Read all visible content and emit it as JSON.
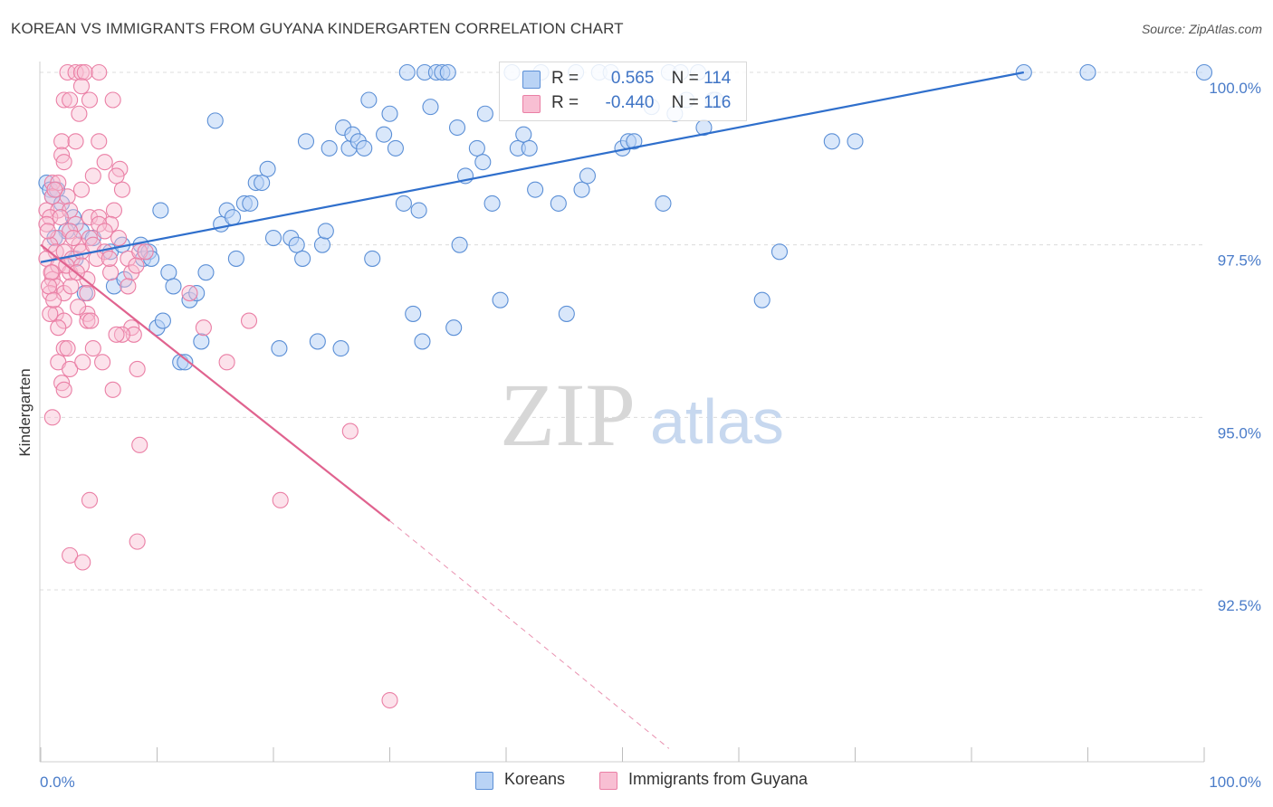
{
  "title": "KOREAN VS IMMIGRANTS FROM GUYANA KINDERGARTEN CORRELATION CHART",
  "source": "Source: ZipAtlas.com",
  "watermark": {
    "zip": "ZIP",
    "atlas": "atlas"
  },
  "colors": {
    "blue_fill": "#b9d3f5",
    "blue_stroke": "#5b8fd6",
    "blue_line": "#2f6fcc",
    "pink_fill": "#f8bfd3",
    "pink_stroke": "#ea7fa5",
    "pink_line": "#e0638f",
    "grid": "#dcdcdc",
    "tick_text": "#4a7cc9"
  },
  "legend": {
    "koreans": {
      "r_label": "R =",
      "r_value": "0.565",
      "n_label": "N =",
      "n_value": "114"
    },
    "guyana": {
      "r_label": "R =",
      "r_value": "-0.440",
      "n_label": "N =",
      "n_value": "116"
    }
  },
  "chart_data": {
    "type": "scatter",
    "title": "KOREAN VS IMMIGRANTS FROM GUYANA KINDERGARTEN CORRELATION CHART",
    "xlabel": "",
    "ylabel": "Kindergarten",
    "xlim": [
      0,
      100
    ],
    "ylim": [
      90.2,
      100.4
    ],
    "x_tick_labels": [
      "0.0%",
      "100.0%"
    ],
    "y_ticks": [
      100.0,
      97.5,
      95.0,
      92.5
    ],
    "y_tick_labels": [
      "100.0%",
      "97.5%",
      "95.0%",
      "92.5%"
    ],
    "grid": "horizontal dashed",
    "legend_position": "top-center and bottom",
    "series": [
      {
        "name": "Koreans",
        "r": 0.565,
        "n": 114,
        "trend": {
          "x0": 0,
          "y0": 97.25,
          "x1": 84.5,
          "y1": 100.0
        },
        "points": [
          [
            0.5,
            98.4
          ],
          [
            0.8,
            98.3
          ],
          [
            1.0,
            98.2
          ],
          [
            1.4,
            98.3
          ],
          [
            1.8,
            98.1
          ],
          [
            2.2,
            97.7
          ],
          [
            2.8,
            97.9
          ],
          [
            3.5,
            97.7
          ],
          [
            1.2,
            97.6
          ],
          [
            3.8,
            96.8
          ],
          [
            4.5,
            97.6
          ],
          [
            6.0,
            97.4
          ],
          [
            6.3,
            96.9
          ],
          [
            7.0,
            97.5
          ],
          [
            7.2,
            97.0
          ],
          [
            8.6,
            97.5
          ],
          [
            8.8,
            97.3
          ],
          [
            9.3,
            97.4
          ],
          [
            10.0,
            96.3
          ],
          [
            10.3,
            98.0
          ],
          [
            10.5,
            96.4
          ],
          [
            11.0,
            97.1
          ],
          [
            11.4,
            96.9
          ],
          [
            12.0,
            95.8
          ],
          [
            12.4,
            95.8
          ],
          [
            12.8,
            96.7
          ],
          [
            13.4,
            96.8
          ],
          [
            13.8,
            96.1
          ],
          [
            14.2,
            97.1
          ],
          [
            15.0,
            99.3
          ],
          [
            15.5,
            97.8
          ],
          [
            16.0,
            98.0
          ],
          [
            16.5,
            97.9
          ],
          [
            16.8,
            97.3
          ],
          [
            17.5,
            98.1
          ],
          [
            18.0,
            98.1
          ],
          [
            18.5,
            98.4
          ],
          [
            19.0,
            98.4
          ],
          [
            19.5,
            98.6
          ],
          [
            20.0,
            97.6
          ],
          [
            20.5,
            96.0
          ],
          [
            21.5,
            97.6
          ],
          [
            22.0,
            97.5
          ],
          [
            22.5,
            97.3
          ],
          [
            22.8,
            99.0
          ],
          [
            23.8,
            96.1
          ],
          [
            24.2,
            97.5
          ],
          [
            24.5,
            97.7
          ],
          [
            24.8,
            98.9
          ],
          [
            25.8,
            96.0
          ],
          [
            26.0,
            99.2
          ],
          [
            26.5,
            98.9
          ],
          [
            26.8,
            99.1
          ],
          [
            27.3,
            99.0
          ],
          [
            27.8,
            98.9
          ],
          [
            28.2,
            99.6
          ],
          [
            28.5,
            97.3
          ],
          [
            29.5,
            99.1
          ],
          [
            30.0,
            99.4
          ],
          [
            30.5,
            98.9
          ],
          [
            31.2,
            98.1
          ],
          [
            31.5,
            100.0
          ],
          [
            32.0,
            96.5
          ],
          [
            32.5,
            98.0
          ],
          [
            32.8,
            96.1
          ],
          [
            33.0,
            100.0
          ],
          [
            33.5,
            99.5
          ],
          [
            34.0,
            100.0
          ],
          [
            34.5,
            100.0
          ],
          [
            35.0,
            100.0
          ],
          [
            35.5,
            96.3
          ],
          [
            35.8,
            99.2
          ],
          [
            36.0,
            97.5
          ],
          [
            36.5,
            98.5
          ],
          [
            37.5,
            98.9
          ],
          [
            38.0,
            98.7
          ],
          [
            38.2,
            99.4
          ],
          [
            38.8,
            98.1
          ],
          [
            39.5,
            96.7
          ],
          [
            40.5,
            100.0
          ],
          [
            41.0,
            98.9
          ],
          [
            41.5,
            99.1
          ],
          [
            42.0,
            98.9
          ],
          [
            42.5,
            98.3
          ],
          [
            43.0,
            100.0
          ],
          [
            44.5,
            98.1
          ],
          [
            45.2,
            96.5
          ],
          [
            46.0,
            100.0
          ],
          [
            46.5,
            98.3
          ],
          [
            47.0,
            98.5
          ],
          [
            48.0,
            100.0
          ],
          [
            49.0,
            100.0
          ],
          [
            50.0,
            98.9
          ],
          [
            50.5,
            99.0
          ],
          [
            51.0,
            99.0
          ],
          [
            52.5,
            99.5
          ],
          [
            53.5,
            98.1
          ],
          [
            54.0,
            100.0
          ],
          [
            54.5,
            99.4
          ],
          [
            55.0,
            100.0
          ],
          [
            55.5,
            99.6
          ],
          [
            56.5,
            100.0
          ],
          [
            57.0,
            99.2
          ],
          [
            57.8,
            99.6
          ],
          [
            58.0,
            99.6
          ],
          [
            62.0,
            96.7
          ],
          [
            63.5,
            97.4
          ],
          [
            68.0,
            99.0
          ],
          [
            70.0,
            99.0
          ],
          [
            84.5,
            100.0
          ],
          [
            90.0,
            100.0
          ],
          [
            100.0,
            100.0
          ],
          [
            3.0,
            97.3
          ],
          [
            9.5,
            97.3
          ]
        ]
      },
      {
        "name": "Immigrants from Guyana",
        "r": -0.44,
        "n": 116,
        "trend": {
          "x0": 0,
          "y0": 97.5,
          "x1": 30.0,
          "y1": 93.5,
          "dash_to": {
            "x": 54.0,
            "y": 90.2
          }
        },
        "points": [
          [
            2.3,
            100.0
          ],
          [
            3.0,
            100.0
          ],
          [
            3.5,
            100.0
          ],
          [
            3.8,
            100.0
          ],
          [
            5.0,
            100.0
          ],
          [
            3.5,
            99.8
          ],
          [
            2.0,
            99.6
          ],
          [
            2.5,
            99.6
          ],
          [
            4.2,
            99.6
          ],
          [
            6.2,
            99.6
          ],
          [
            3.3,
            99.4
          ],
          [
            1.8,
            99.0
          ],
          [
            3.0,
            99.0
          ],
          [
            5.0,
            99.0
          ],
          [
            1.8,
            98.8
          ],
          [
            2.0,
            98.7
          ],
          [
            5.5,
            98.7
          ],
          [
            4.5,
            98.5
          ],
          [
            6.8,
            98.6
          ],
          [
            6.5,
            98.5
          ],
          [
            1.0,
            98.4
          ],
          [
            1.5,
            98.4
          ],
          [
            2.3,
            98.2
          ],
          [
            3.5,
            98.3
          ],
          [
            7.0,
            98.3
          ],
          [
            1.0,
            98.2
          ],
          [
            0.5,
            98.0
          ],
          [
            1.5,
            98.0
          ],
          [
            2.5,
            98.0
          ],
          [
            6.3,
            98.0
          ],
          [
            0.8,
            97.9
          ],
          [
            3.0,
            97.8
          ],
          [
            4.2,
            97.9
          ],
          [
            5.0,
            97.9
          ],
          [
            6.0,
            97.8
          ],
          [
            0.5,
            97.8
          ],
          [
            1.5,
            97.6
          ],
          [
            2.5,
            97.7
          ],
          [
            3.3,
            97.5
          ],
          [
            4.2,
            97.6
          ],
          [
            5.0,
            97.8
          ],
          [
            5.5,
            97.7
          ],
          [
            0.8,
            97.5
          ],
          [
            1.3,
            97.4
          ],
          [
            2.0,
            97.4
          ],
          [
            2.7,
            97.3
          ],
          [
            3.5,
            97.4
          ],
          [
            4.5,
            97.5
          ],
          [
            5.5,
            97.4
          ],
          [
            7.5,
            97.3
          ],
          [
            8.5,
            97.4
          ],
          [
            0.5,
            97.3
          ],
          [
            1.0,
            97.1
          ],
          [
            1.5,
            97.2
          ],
          [
            2.5,
            97.1
          ],
          [
            3.5,
            97.2
          ],
          [
            4.0,
            97.0
          ],
          [
            6.0,
            97.1
          ],
          [
            7.8,
            97.1
          ],
          [
            8.2,
            97.2
          ],
          [
            1.0,
            97.0
          ],
          [
            1.3,
            96.9
          ],
          [
            0.8,
            96.8
          ],
          [
            2.0,
            96.8
          ],
          [
            4.0,
            96.8
          ],
          [
            1.3,
            96.5
          ],
          [
            4.0,
            96.5
          ],
          [
            0.8,
            96.5
          ],
          [
            2.0,
            96.4
          ],
          [
            1.5,
            96.3
          ],
          [
            4.0,
            96.4
          ],
          [
            4.3,
            96.4
          ],
          [
            7.8,
            96.3
          ],
          [
            8.0,
            96.2
          ],
          [
            7.0,
            96.2
          ],
          [
            6.5,
            96.2
          ],
          [
            14.0,
            96.3
          ],
          [
            17.9,
            96.4
          ],
          [
            2.0,
            96.0
          ],
          [
            2.3,
            96.0
          ],
          [
            4.5,
            96.0
          ],
          [
            1.5,
            95.8
          ],
          [
            2.5,
            95.7
          ],
          [
            3.6,
            95.8
          ],
          [
            5.3,
            95.8
          ],
          [
            8.3,
            95.7
          ],
          [
            1.8,
            95.5
          ],
          [
            2.0,
            95.4
          ],
          [
            6.2,
            95.4
          ],
          [
            1.0,
            95.0
          ],
          [
            8.5,
            94.6
          ],
          [
            26.6,
            94.8
          ],
          [
            4.2,
            93.8
          ],
          [
            20.6,
            93.8
          ],
          [
            2.5,
            93.0
          ],
          [
            3.6,
            92.9
          ],
          [
            8.3,
            93.2
          ],
          [
            30.0,
            90.9
          ],
          [
            16.0,
            95.8
          ],
          [
            12.8,
            96.8
          ],
          [
            9.0,
            97.4
          ],
          [
            7.5,
            96.9
          ],
          [
            6.7,
            97.6
          ],
          [
            2.8,
            97.6
          ],
          [
            3.2,
            96.6
          ],
          [
            1.2,
            98.3
          ],
          [
            0.6,
            97.7
          ],
          [
            0.9,
            97.1
          ],
          [
            1.7,
            97.9
          ],
          [
            2.2,
            97.2
          ],
          [
            0.7,
            96.9
          ],
          [
            4.8,
            97.3
          ],
          [
            3.1,
            97.1
          ],
          [
            5.9,
            97.3
          ],
          [
            1.1,
            96.7
          ],
          [
            2.6,
            96.9
          ]
        ]
      }
    ]
  }
}
